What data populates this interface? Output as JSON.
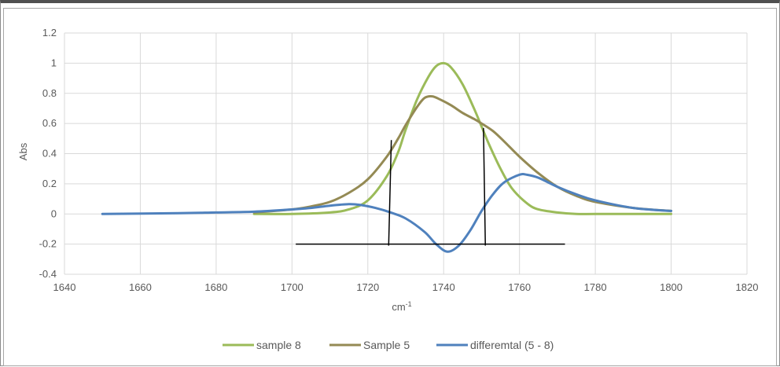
{
  "chart_data": {
    "type": "line",
    "title": "",
    "xlabel": "cm",
    "xlabel_superscript": "-1",
    "ylabel": "Abs",
    "xlim": [
      1640,
      1820
    ],
    "ylim": [
      -0.4,
      1.2
    ],
    "xticks": [
      1640,
      1660,
      1680,
      1700,
      1720,
      1740,
      1760,
      1780,
      1800,
      1820
    ],
    "yticks": [
      -0.4,
      -0.2,
      0,
      0.2,
      0.4,
      0.6,
      0.8,
      1,
      1.2
    ],
    "ytick_labels": [
      "-0.4",
      "-0.2",
      "0",
      "0.2",
      "0.4",
      "0.6",
      "0.8",
      "1",
      "1.2"
    ],
    "grid": "vertical and horizontal",
    "legend_position": "bottom",
    "series": [
      {
        "name": "sample 8",
        "color": "#9bbb59",
        "x": [
          1690,
          1700,
          1710,
          1715,
          1720,
          1725,
          1728,
          1730,
          1733,
          1736,
          1738,
          1740,
          1742,
          1745,
          1748,
          1750,
          1752,
          1755,
          1758,
          1762,
          1765,
          1770,
          1775,
          1780,
          1790,
          1800
        ],
        "y": [
          0.0,
          0.0,
          0.01,
          0.03,
          0.09,
          0.25,
          0.41,
          0.56,
          0.76,
          0.91,
          0.98,
          1.0,
          0.97,
          0.86,
          0.7,
          0.58,
          0.46,
          0.3,
          0.17,
          0.07,
          0.03,
          0.01,
          0.0,
          0.0,
          0.0,
          0.0
        ]
      },
      {
        "name": "Sample 5",
        "color": "#948a54",
        "x": [
          1690,
          1700,
          1705,
          1710,
          1715,
          1720,
          1725,
          1728,
          1730,
          1733,
          1735,
          1737,
          1739,
          1742,
          1745,
          1748,
          1750,
          1753,
          1756,
          1760,
          1765,
          1770,
          1775,
          1780,
          1790,
          1800
        ],
        "y": [
          0.01,
          0.03,
          0.05,
          0.08,
          0.14,
          0.23,
          0.38,
          0.5,
          0.59,
          0.71,
          0.77,
          0.78,
          0.76,
          0.72,
          0.67,
          0.63,
          0.6,
          0.55,
          0.48,
          0.38,
          0.27,
          0.18,
          0.12,
          0.08,
          0.04,
          0.02
        ]
      },
      {
        "name": "differemtal (5 - 8)",
        "color": "#4f81bd",
        "x": [
          1650,
          1670,
          1680,
          1690,
          1700,
          1705,
          1710,
          1715,
          1718,
          1722,
          1726,
          1730,
          1735,
          1738,
          1741,
          1744,
          1747,
          1750,
          1753,
          1756,
          1760,
          1762,
          1765,
          1770,
          1775,
          1780,
          1790,
          1800
        ],
        "y": [
          0.0,
          0.005,
          0.01,
          0.015,
          0.03,
          0.04,
          0.055,
          0.065,
          0.06,
          0.04,
          0.01,
          -0.03,
          -0.12,
          -0.2,
          -0.25,
          -0.21,
          -0.11,
          0.02,
          0.13,
          0.21,
          0.26,
          0.26,
          0.24,
          0.18,
          0.13,
          0.09,
          0.04,
          0.02
        ]
      }
    ],
    "annotations": {
      "baseline": {
        "x": [
          1701,
          1772
        ],
        "y": -0.2,
        "color": "#000000"
      },
      "markers": [
        {
          "x_bottom": 1725.5,
          "x_top": 1726.2,
          "y_bottom": -0.21,
          "y_top": 0.49
        },
        {
          "x_bottom": 1751.0,
          "x_top": 1750.5,
          "y_bottom": -0.21,
          "y_top": 0.57
        }
      ]
    }
  }
}
